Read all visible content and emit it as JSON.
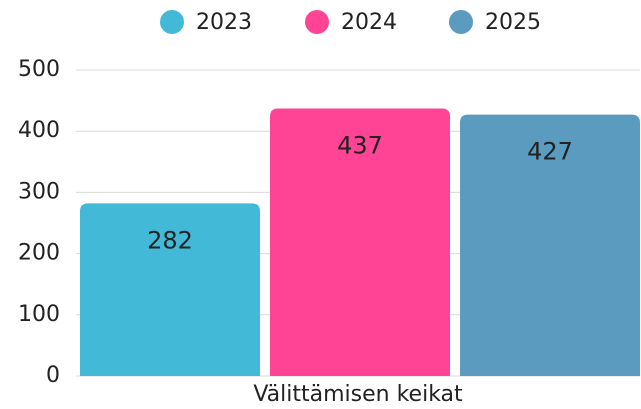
{
  "chart_data": {
    "type": "bar",
    "categories": [
      "Välittämisen keikat"
    ],
    "series": [
      {
        "name": "2023",
        "color": "#42b9d7",
        "values": [
          282
        ]
      },
      {
        "name": "2024",
        "color": "#ff4495",
        "values": [
          437
        ]
      },
      {
        "name": "2025",
        "color": "#5b9bbf",
        "values": [
          427
        ]
      }
    ],
    "ylim": [
      0,
      500
    ],
    "yticks": [
      0,
      100,
      200,
      300,
      400,
      500
    ],
    "grid": true,
    "legend": "top"
  }
}
